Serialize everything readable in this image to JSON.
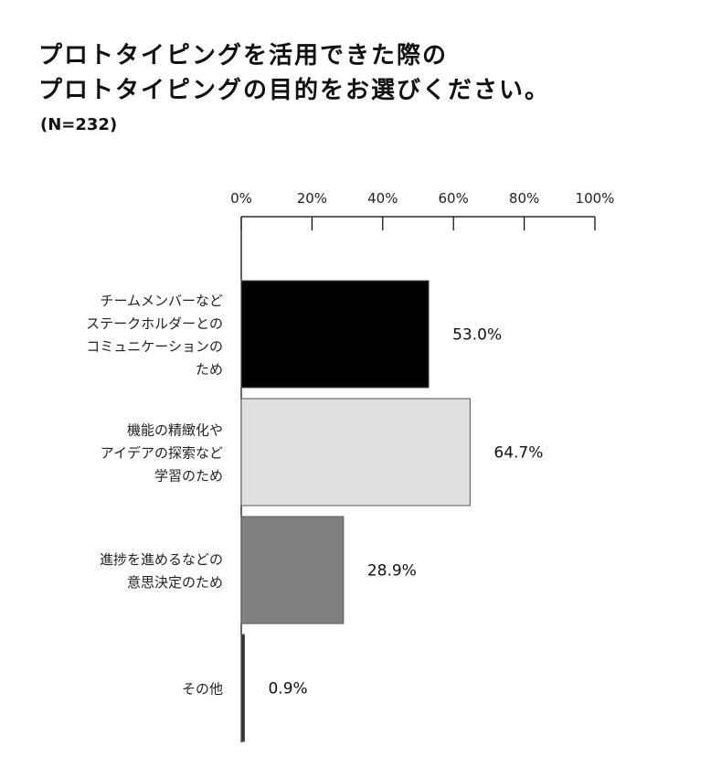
{
  "chart_data": {
    "type": "bar",
    "orientation": "horizontal",
    "title": [
      "プロトタイピングを活用できた際の",
      "プロトタイピングの目的をお選びください。"
    ],
    "subtitle": "(N=232)",
    "x_ticks": [
      "0%",
      "20%",
      "40%",
      "60%",
      "80%",
      "100%"
    ],
    "xlim": [
      0,
      100
    ],
    "categories": [
      [
        "チームメンバーなど",
        "ステークホルダーとの",
        "コミュニケーションの",
        "ため"
      ],
      [
        "機能の精緻化や",
        "アイデアの探索など",
        "学習のため"
      ],
      [
        "進捗を進めるなどの",
        "意思決定のため"
      ],
      [
        "その他"
      ]
    ],
    "values": [
      53.0,
      64.7,
      28.9,
      0.9
    ],
    "value_labels": [
      "53.0%",
      "64.7%",
      "28.9%",
      "0.9%"
    ],
    "bar_colors": [
      "#000000",
      "#e0e0e0",
      "#808080",
      "#333333"
    ],
    "grid": false,
    "legend": "none"
  }
}
